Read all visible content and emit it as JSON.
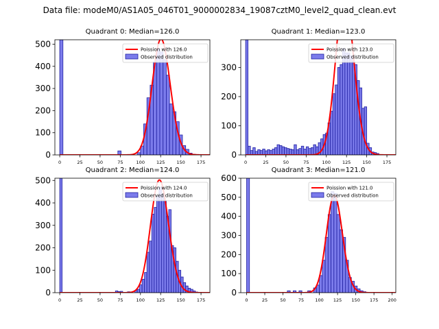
{
  "figure": {
    "suptitle": "Data file: modeM0/AS1A05_046T01_9000002834_19087cztM0_level2_quad_clean.evt"
  },
  "colors": {
    "bar_fill": "#7b7beb",
    "bar_edge": "#2020a0",
    "fit_line": "#ff0000"
  },
  "chart_data": [
    {
      "type": "bar",
      "title": "Quadrant 0: Median=126.0",
      "median": 126.0,
      "xlim": [
        -6,
        186
      ],
      "ylim": [
        0,
        520
      ],
      "xticks": [
        0,
        25,
        50,
        75,
        100,
        125,
        150,
        175
      ],
      "yticks": [
        0,
        100,
        200,
        300,
        400,
        500
      ],
      "bin_width": 4,
      "legend": [
        "Poission with 126.0",
        "Observed distribution"
      ],
      "hist": [
        [
          0,
          520
        ],
        [
          72,
          18
        ],
        [
          96,
          10
        ],
        [
          100,
          40
        ],
        [
          104,
          140
        ],
        [
          108,
          258
        ],
        [
          112,
          315
        ],
        [
          116,
          420
        ],
        [
          120,
          480
        ],
        [
          124,
          465
        ],
        [
          128,
          430
        ],
        [
          132,
          360
        ],
        [
          136,
          230
        ],
        [
          140,
          195
        ],
        [
          144,
          150
        ],
        [
          148,
          90
        ],
        [
          152,
          42
        ],
        [
          156,
          25
        ],
        [
          160,
          8
        ],
        [
          164,
          3
        ],
        [
          168,
          2
        ],
        [
          172,
          1
        ]
      ]
    },
    {
      "type": "bar",
      "title": "Quadrant 1: Median=123.0",
      "median": 123.0,
      "xlim": [
        -6,
        186
      ],
      "ylim": [
        0,
        395
      ],
      "xticks": [
        0,
        25,
        50,
        75,
        100,
        125,
        150,
        175
      ],
      "yticks": [
        0,
        100,
        200,
        300
      ],
      "bin_width": 3,
      "legend": [
        "Poission with 123.0",
        "Observed distribution"
      ],
      "hist": [
        [
          0,
          395
        ],
        [
          3,
          30
        ],
        [
          6,
          15
        ],
        [
          9,
          25
        ],
        [
          12,
          12
        ],
        [
          15,
          18
        ],
        [
          18,
          15
        ],
        [
          21,
          20
        ],
        [
          24,
          14
        ],
        [
          27,
          18
        ],
        [
          30,
          15
        ],
        [
          33,
          20
        ],
        [
          36,
          25
        ],
        [
          39,
          35
        ],
        [
          42,
          32
        ],
        [
          45,
          28
        ],
        [
          48,
          25
        ],
        [
          51,
          22
        ],
        [
          54,
          20
        ],
        [
          57,
          18
        ],
        [
          60,
          35
        ],
        [
          63,
          18
        ],
        [
          66,
          22
        ],
        [
          69,
          30
        ],
        [
          72,
          20
        ],
        [
          75,
          28
        ],
        [
          78,
          22
        ],
        [
          81,
          25
        ],
        [
          84,
          35
        ],
        [
          87,
          28
        ],
        [
          90,
          42
        ],
        [
          93,
          55
        ],
        [
          96,
          70
        ],
        [
          99,
          75
        ],
        [
          102,
          110
        ],
        [
          105,
          150
        ],
        [
          108,
          210
        ],
        [
          111,
          240
        ],
        [
          114,
          300
        ],
        [
          117,
          310
        ],
        [
          120,
          365
        ],
        [
          123,
          350
        ],
        [
          126,
          350
        ],
        [
          129,
          340
        ],
        [
          132,
          320
        ],
        [
          135,
          310
        ],
        [
          138,
          255
        ],
        [
          141,
          230
        ],
        [
          144,
          160
        ],
        [
          147,
          165
        ],
        [
          150,
          40
        ],
        [
          153,
          25
        ],
        [
          156,
          10
        ],
        [
          159,
          8
        ],
        [
          162,
          5
        ]
      ]
    },
    {
      "type": "bar",
      "title": "Quadrant 2: Median=124.0",
      "median": 124.0,
      "xlim": [
        -6,
        186
      ],
      "ylim": [
        0,
        510
      ],
      "xticks": [
        0,
        25,
        50,
        75,
        100,
        125,
        150,
        175
      ],
      "yticks": [
        0,
        100,
        200,
        300,
        400,
        500
      ],
      "bin_width": 3,
      "legend": [
        "Poission with 124.0",
        "Observed distribution"
      ],
      "hist": [
        [
          0,
          510
        ],
        [
          69,
          8
        ],
        [
          72,
          5
        ],
        [
          75,
          6
        ],
        [
          84,
          4
        ],
        [
          93,
          10
        ],
        [
          96,
          15
        ],
        [
          99,
          35
        ],
        [
          102,
          60
        ],
        [
          105,
          90
        ],
        [
          108,
          180
        ],
        [
          111,
          230
        ],
        [
          114,
          350
        ],
        [
          117,
          380
        ],
        [
          120,
          430
        ],
        [
          123,
          470
        ],
        [
          126,
          440
        ],
        [
          129,
          410
        ],
        [
          132,
          340
        ],
        [
          135,
          370
        ],
        [
          138,
          210
        ],
        [
          141,
          200
        ],
        [
          144,
          140
        ],
        [
          147,
          100
        ],
        [
          150,
          70
        ],
        [
          153,
          45
        ],
        [
          156,
          30
        ],
        [
          159,
          20
        ],
        [
          162,
          15
        ],
        [
          165,
          8
        ],
        [
          168,
          3
        ]
      ]
    },
    {
      "type": "bar",
      "title": "Quadrant 3: Median=121.0",
      "median": 121.0,
      "xlim": [
        -8,
        205
      ],
      "ylim": [
        0,
        600
      ],
      "xticks": [
        0,
        25,
        50,
        75,
        100,
        125,
        150,
        175,
        200
      ],
      "yticks": [
        0,
        100,
        200,
        300,
        400,
        500,
        600
      ],
      "bin_width": 4,
      "legend": [
        "Poission with 121.0",
        "Observed distribution"
      ],
      "hist": [
        [
          0,
          600
        ],
        [
          56,
          10
        ],
        [
          64,
          10
        ],
        [
          72,
          10
        ],
        [
          84,
          10
        ],
        [
          92,
          25
        ],
        [
          96,
          40
        ],
        [
          100,
          90
        ],
        [
          104,
          170
        ],
        [
          108,
          290
        ],
        [
          112,
          410
        ],
        [
          116,
          530
        ],
        [
          120,
          520
        ],
        [
          124,
          410
        ],
        [
          128,
          330
        ],
        [
          132,
          290
        ],
        [
          136,
          170
        ],
        [
          140,
          80
        ],
        [
          144,
          60
        ],
        [
          148,
          35
        ],
        [
          152,
          20
        ],
        [
          156,
          10
        ],
        [
          160,
          5
        ]
      ]
    }
  ]
}
